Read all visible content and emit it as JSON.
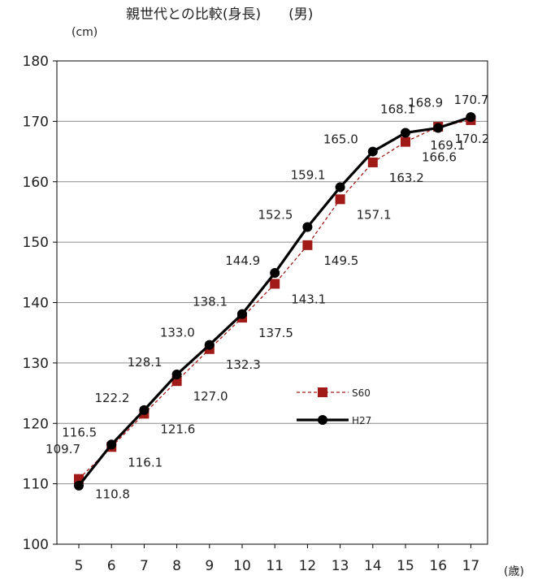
{
  "chart_data": {
    "type": "line",
    "title": "親世代との比較(身長)　　(男)",
    "y_unit": "(cm)",
    "x_unit": "(歳)",
    "x": [
      "5",
      "6",
      "7",
      "8",
      "9",
      "10",
      "11",
      "12",
      "13",
      "14",
      "15",
      "16",
      "17"
    ],
    "ylim": [
      100,
      180
    ],
    "yticks": [
      "100",
      "110",
      "120",
      "130",
      "140",
      "150",
      "160",
      "170",
      "180"
    ],
    "legend_position": "center-right",
    "series": [
      {
        "name": "S60",
        "color": "#a01b17",
        "style": "dashed",
        "marker": "square",
        "values": [
          110.8,
          116.1,
          121.6,
          127.0,
          132.3,
          137.5,
          143.1,
          149.5,
          157.1,
          163.2,
          166.6,
          169.1,
          170.2
        ],
        "labels": [
          "110.8",
          "116.1",
          "121.6",
          "127.0",
          "132.3",
          "137.5",
          "143.1",
          "149.5",
          "157.1",
          "163.2",
          "166.6",
          "169.1",
          "170.2"
        ]
      },
      {
        "name": "H27",
        "color": "#000000",
        "style": "solid",
        "marker": "circle",
        "values": [
          109.7,
          116.5,
          122.2,
          128.1,
          133.0,
          138.1,
          144.9,
          152.5,
          159.1,
          165.0,
          168.1,
          168.9,
          170.7
        ],
        "labels": [
          "109.7",
          "116.5",
          "122.2",
          "128.1",
          "133.0",
          "138.1",
          "144.9",
          "152.5",
          "159.1",
          "165.0",
          "168.1",
          "168.9",
          "170.7"
        ]
      }
    ]
  }
}
